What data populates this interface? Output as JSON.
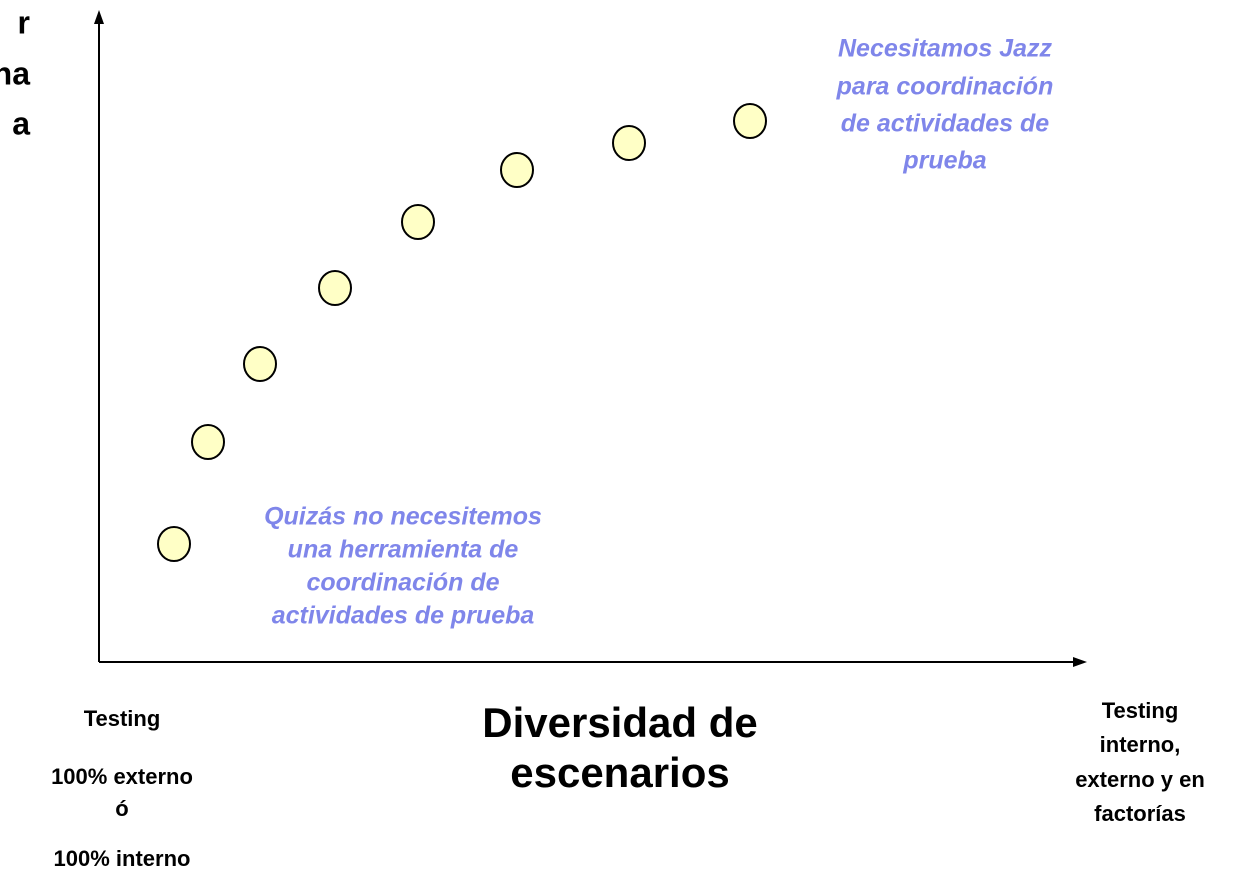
{
  "left_label": [
    "r",
    "na",
    "a"
  ],
  "annotations": {
    "high": [
      "Necesitamos Jazz",
      "para coordinación",
      "de actividades de",
      "prueba"
    ],
    "low": [
      "Quizás no necesitemos",
      "una herramienta de",
      "coordinación de",
      "actividades de prueba"
    ]
  },
  "x_axis": {
    "title": [
      "Diversidad de",
      "escenarios"
    ],
    "left": [
      "Testing",
      "100% externo",
      "ó",
      "100% interno"
    ],
    "right": [
      "Testing",
      "interno,",
      "externo y en",
      "factorías"
    ]
  }
}
